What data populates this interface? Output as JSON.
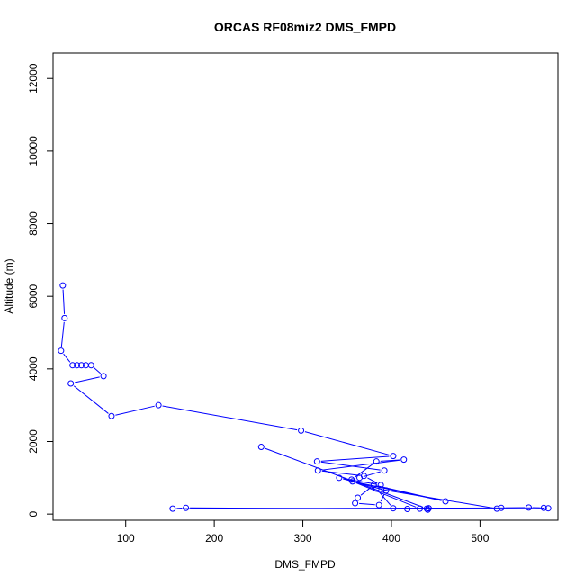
{
  "chart_data": {
    "type": "line",
    "title": "ORCAS RF08miz2 DMS_FMPD",
    "xlabel": "DMS_FMPD",
    "ylabel": "Altitude (m)",
    "xlim": [
      18,
      588
    ],
    "ylim": [
      -170,
      12700
    ],
    "xticks": [
      100,
      200,
      300,
      400,
      500
    ],
    "yticks": [
      0,
      2000,
      4000,
      6000,
      8000,
      10000,
      12000
    ],
    "grid": false,
    "color": "#0000ff",
    "series": [
      {
        "x": [
          29,
          31,
          27,
          40,
          45,
          50,
          55,
          61,
          75,
          38,
          84,
          137,
          298,
          402,
          316,
          392,
          364,
          355,
          383,
          414,
          317,
          369,
          388,
          341,
          394,
          386,
          359,
          362,
          380,
          461,
          356,
          432,
          441,
          442,
          418,
          168,
          153,
          572,
          577,
          555,
          524,
          519,
          383,
          402,
          442,
          440,
          253
        ],
        "y": [
          6300,
          5400,
          4500,
          4100,
          4100,
          4100,
          4100,
          4100,
          3800,
          3600,
          2700,
          3000,
          2300,
          1600,
          1450,
          1200,
          1000,
          950,
          1450,
          1500,
          1200,
          1050,
          800,
          1000,
          650,
          250,
          300,
          450,
          800,
          350,
          900,
          150,
          120,
          160,
          140,
          170,
          150,
          170,
          160,
          180,
          170,
          150,
          700,
          160,
          160,
          150,
          1850
        ]
      }
    ]
  }
}
